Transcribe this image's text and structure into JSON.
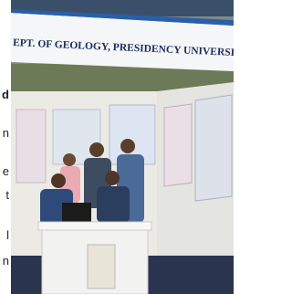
{
  "banner": "EPT. OF GEOLOGY, PRESIDENCY UNIVERSITY,",
  "side_text": [
    "d",
    "n",
    "e",
    "t",
    "l",
    "n"
  ]
}
